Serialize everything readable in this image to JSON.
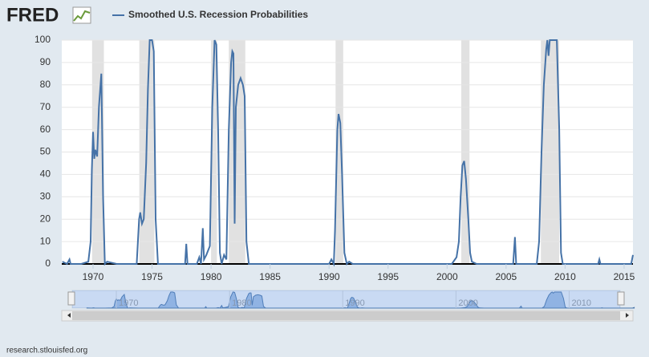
{
  "brand": "FRED",
  "footer": "research.stlouisfed.org",
  "chart_data": {
    "type": "line",
    "series": [
      {
        "name": "Smoothed U.S. Recession Probabilities",
        "color": "#4572a7",
        "x": [
          1967.4,
          1967.8,
          1968.0,
          1968.1,
          1969.0,
          1969.6,
          1969.8,
          1969.9,
          1970.0,
          1970.1,
          1970.2,
          1970.35,
          1970.5,
          1970.7,
          1970.85,
          1971.0,
          1971.2,
          1972.0,
          1973.7,
          1973.9,
          1974.0,
          1974.15,
          1974.3,
          1974.5,
          1974.65,
          1974.8,
          1975.0,
          1975.15,
          1975.3,
          1975.5,
          1977.8,
          1977.9,
          1978.0,
          1978.8,
          1979.0,
          1979.15,
          1979.3,
          1979.4,
          1979.6,
          1979.9,
          1980.1,
          1980.3,
          1980.45,
          1980.6,
          1980.75,
          1980.9,
          1981.1,
          1981.3,
          1981.5,
          1981.7,
          1981.8,
          1981.9,
          1982.0,
          1982.1,
          1982.3,
          1982.5,
          1982.7,
          1982.85,
          1983.0,
          1983.2,
          1990.0,
          1990.2,
          1990.4,
          1990.5,
          1990.7,
          1990.8,
          1990.95,
          1991.1,
          1991.3,
          1991.5,
          1991.7,
          1992.0,
          2000.4,
          2000.8,
          2001.0,
          2001.15,
          2001.3,
          2001.45,
          2001.6,
          2001.8,
          2001.95,
          2002.1,
          2002.5,
          2005.6,
          2005.75,
          2005.85,
          2007.6,
          2007.8,
          2008.0,
          2008.2,
          2008.4,
          2008.5,
          2008.6,
          2008.7,
          2009.3,
          2009.5,
          2009.65,
          2009.8,
          2012.8,
          2012.9,
          2013.0,
          2015.6,
          2015.75
        ],
        "values": [
          1,
          0,
          2,
          0,
          0,
          1,
          10,
          42,
          59,
          47,
          51,
          48,
          70,
          85,
          30,
          0,
          1,
          0,
          0,
          20,
          23,
          18,
          20,
          45,
          78,
          100,
          100,
          95,
          20,
          0,
          0,
          9,
          0,
          0,
          3,
          0,
          16,
          2,
          4,
          8,
          70,
          100,
          98,
          60,
          5,
          0,
          4,
          2,
          60,
          90,
          95,
          94,
          18,
          70,
          80,
          83,
          80,
          75,
          10,
          0,
          0,
          2,
          0,
          15,
          60,
          67,
          63,
          40,
          5,
          0,
          1,
          0,
          0,
          3,
          10,
          30,
          44,
          46,
          38,
          20,
          5,
          1,
          0,
          0,
          12,
          0,
          0,
          10,
          50,
          80,
          96,
          100,
          93,
          100,
          100,
          60,
          5,
          0,
          0,
          2,
          0,
          0,
          4
        ]
      }
    ],
    "recessions": [
      [
        1969.92,
        1970.92
      ],
      [
        1973.92,
        1975.2
      ],
      [
        1980.0,
        1980.5
      ],
      [
        1981.5,
        1982.9
      ],
      [
        1990.55,
        1991.2
      ],
      [
        2001.2,
        2001.9
      ],
      [
        2007.95,
        2009.5
      ]
    ],
    "xlim": [
      1967.35,
      2015.75
    ],
    "xticks": [
      1970,
      1975,
      1980,
      1985,
      1990,
      1995,
      2000,
      2005,
      2010,
      2015
    ],
    "ylim": [
      0,
      100
    ],
    "yticks": [
      0,
      10,
      20,
      30,
      40,
      50,
      60,
      70,
      80,
      90,
      100
    ],
    "grid": true,
    "navigator": {
      "xlim": [
        1966.1,
        2014.5
      ],
      "xticks": [
        1970,
        1980,
        1990,
        2000,
        2010
      ]
    }
  }
}
